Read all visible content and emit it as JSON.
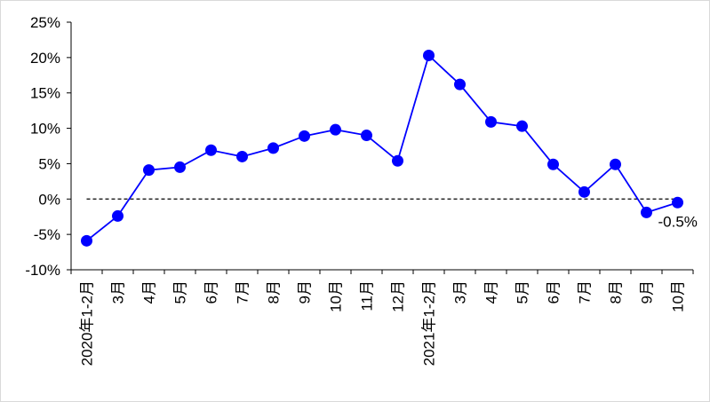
{
  "chart_data": {
    "type": "line",
    "categories": [
      "2020年1-2月",
      "3月",
      "4月",
      "5月",
      "6月",
      "7月",
      "8月",
      "9月",
      "10月",
      "11月",
      "12月",
      "2021年1-2月",
      "3月",
      "4月",
      "5月",
      "6月",
      "7月",
      "8月",
      "9月",
      "10月"
    ],
    "values": [
      -5.9,
      -2.4,
      4.1,
      4.5,
      6.9,
      6.0,
      7.2,
      8.9,
      9.8,
      9.0,
      5.4,
      20.3,
      16.2,
      10.9,
      10.3,
      4.9,
      1.0,
      4.9,
      -1.9,
      -0.5
    ],
    "value_labels": [
      null,
      null,
      null,
      null,
      null,
      null,
      null,
      null,
      null,
      null,
      null,
      null,
      null,
      null,
      null,
      null,
      null,
      null,
      null,
      "-0.5%"
    ],
    "color": "#0000ff",
    "ylim": [
      -10,
      25
    ],
    "yticks": [
      {
        "value": -10,
        "label": "-10%"
      },
      {
        "value": -5,
        "label": "-5%"
      },
      {
        "value": 0,
        "label": "0%"
      },
      {
        "value": 5,
        "label": "5%"
      },
      {
        "value": 10,
        "label": "10%"
      },
      {
        "value": 15,
        "label": "15%"
      },
      {
        "value": 20,
        "label": "20%"
      },
      {
        "value": 25,
        "label": "25%"
      }
    ],
    "reference_line": 0,
    "grid": false
  }
}
